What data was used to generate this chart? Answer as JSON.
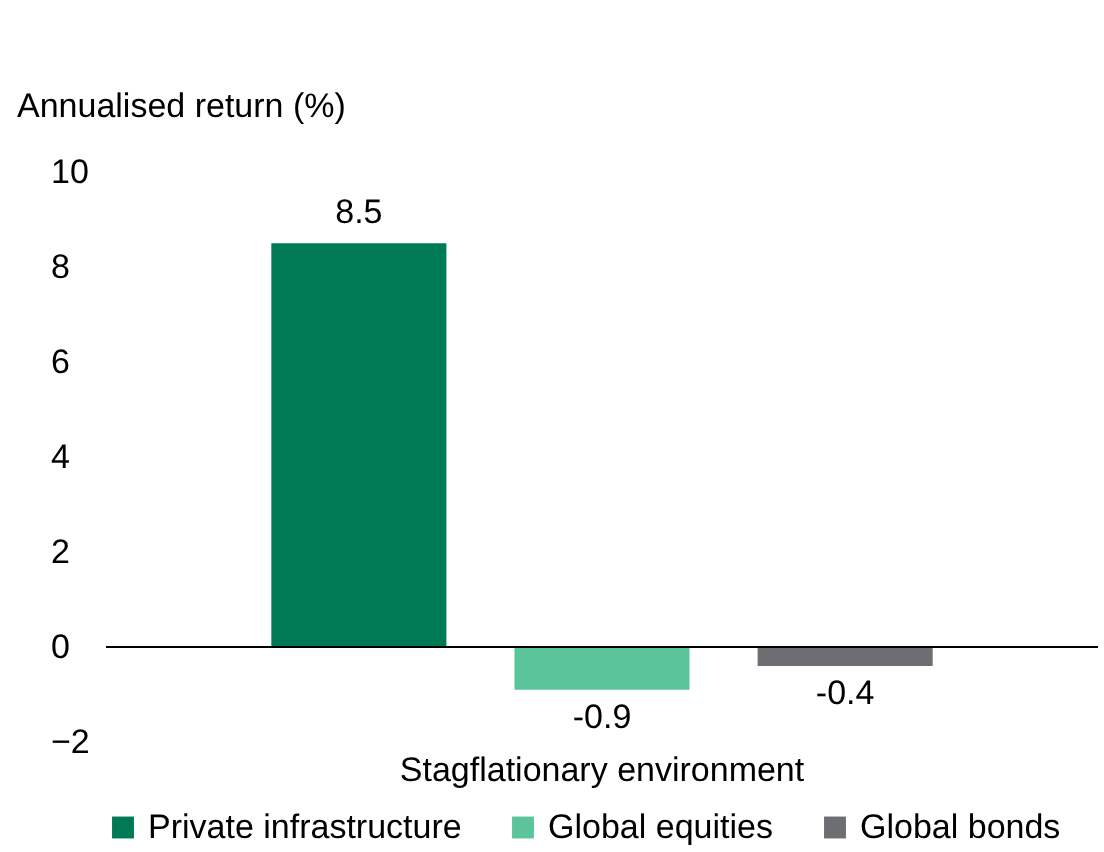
{
  "chart_data": {
    "type": "bar",
    "ylabel": "Annualised return (%)",
    "categories": [
      "Stagflationary environment"
    ],
    "series": [
      {
        "name": "Private infrastructure",
        "color": "#007a55",
        "values": [
          8.5
        ]
      },
      {
        "name": "Global equities",
        "color": "#5cc49a",
        "values": [
          -0.9
        ]
      },
      {
        "name": "Global bonds",
        "color": "#6d6e71",
        "values": [
          -0.4
        ]
      }
    ],
    "ref_lines": [
      {
        "axis": "y",
        "value": 0,
        "color": "#000000"
      }
    ],
    "ylim": [
      -2,
      10
    ],
    "yticks": [
      -2,
      0,
      2,
      4,
      6,
      8,
      10
    ],
    "grid": false,
    "legend": "bottom",
    "data_labels": true
  }
}
